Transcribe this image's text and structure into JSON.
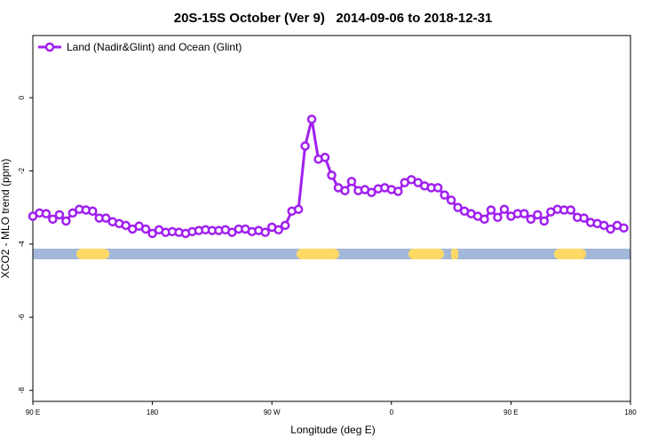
{
  "chart_data": {
    "type": "line",
    "title": "20S-15S October (Ver 9)   2014-09-06 to 2018-12-31",
    "xlabel": "Longitude (deg E)",
    "ylabel": "XCO2 - MLO trend (ppm)",
    "x": [
      90,
      95,
      100,
      105,
      110,
      115,
      120,
      125,
      130,
      135,
      140,
      145,
      150,
      155,
      160,
      165,
      170,
      175,
      180,
      185,
      190,
      195,
      200,
      205,
      210,
      215,
      220,
      225,
      230,
      235,
      240,
      245,
      250,
      255,
      260,
      265,
      270,
      275,
      280,
      285,
      290,
      295,
      300,
      305,
      310,
      315,
      320,
      325,
      330,
      335,
      340,
      345,
      350,
      355,
      360,
      365,
      370,
      375,
      380,
      385,
      390,
      395,
      400,
      405,
      410,
      415,
      420,
      425,
      430,
      435,
      440,
      445,
      450,
      455,
      460,
      465,
      470,
      475,
      480,
      485,
      490,
      495,
      500,
      505,
      510,
      515,
      520,
      525,
      530,
      535
    ],
    "series": [
      {
        "name": "Land (Nadir&Glint) and Ocean (Glint)",
        "color": "#a020f0",
        "values": [
          -3.24,
          -3.15,
          -3.17,
          -3.32,
          -3.2,
          -3.37,
          -3.15,
          -3.05,
          -3.07,
          -3.1,
          -3.29,
          -3.29,
          -3.39,
          -3.44,
          -3.49,
          -3.59,
          -3.51,
          -3.59,
          -3.71,
          -3.61,
          -3.68,
          -3.66,
          -3.68,
          -3.71,
          -3.66,
          -3.63,
          -3.61,
          -3.63,
          -3.63,
          -3.61,
          -3.68,
          -3.59,
          -3.59,
          -3.66,
          -3.63,
          -3.68,
          -3.54,
          -3.61,
          -3.49,
          -3.1,
          -3.05,
          -1.32,
          -0.59,
          -1.68,
          -1.63,
          -2.12,
          -2.46,
          -2.54,
          -2.29,
          -2.54,
          -2.51,
          -2.59,
          -2.49,
          -2.46,
          -2.51,
          -2.56,
          -2.32,
          -2.24,
          -2.32,
          -2.41,
          -2.46,
          -2.46,
          -2.66,
          -2.8,
          -3.0,
          -3.1,
          -3.17,
          -3.24,
          -3.32,
          -3.07,
          -3.27,
          -3.05,
          -3.24,
          -3.17,
          -3.17,
          -3.32,
          -3.2,
          -3.37,
          -3.12,
          -3.05,
          -3.07,
          -3.07,
          -3.27,
          -3.29,
          -3.41,
          -3.44,
          -3.49,
          -3.59,
          -3.49,
          -3.56
        ]
      }
    ],
    "xlim": [
      90,
      540
    ],
    "xticks": [
      {
        "value": 90,
        "label": "90 E"
      },
      {
        "value": 180,
        "label": "180"
      },
      {
        "value": 270,
        "label": "90 W"
      },
      {
        "value": 360,
        "label": "0"
      },
      {
        "value": 450,
        "label": "90 E"
      },
      {
        "value": 540,
        "label": "180"
      }
    ],
    "ylim": [
      -8.3,
      1.7
    ],
    "yticks": [
      -8,
      -6,
      -4,
      -2,
      0
    ],
    "legend": "top-left"
  }
}
